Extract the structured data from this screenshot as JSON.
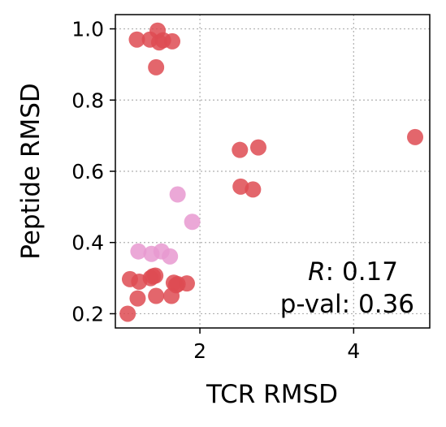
{
  "chart_data": {
    "type": "scatter",
    "xlabel": "TCR RMSD",
    "ylabel": "Peptide RMSD",
    "xlim": [
      0.9,
      4.99
    ],
    "ylim": [
      0.16,
      1.04
    ],
    "x_ticks": [
      2,
      4
    ],
    "y_ticks": [
      0.2,
      0.4,
      0.6,
      0.8,
      1.0
    ],
    "x_tick_labels": [
      "2",
      "4"
    ],
    "y_tick_labels": [
      "0.2",
      "0.4",
      "0.6",
      "0.8",
      "1.0"
    ],
    "grid": true,
    "annotation": {
      "r_symbol": "R",
      "r_value": ": 0.17",
      "pval_text": "p-val: 0.36"
    },
    "series": [
      {
        "color": "#de4b52",
        "points": [
          [
            1.35,
            0.97
          ],
          [
            1.45,
            0.995
          ],
          [
            1.52,
            0.968
          ],
          [
            1.64,
            0.965
          ],
          [
            1.18,
            0.97
          ],
          [
            1.47,
            0.962
          ],
          [
            1.43,
            0.892
          ],
          [
            2.52,
            0.66
          ],
          [
            2.76,
            0.667
          ],
          [
            4.8,
            0.696
          ],
          [
            2.53,
            0.557
          ],
          [
            2.69,
            0.549
          ],
          [
            1.09,
            0.297
          ],
          [
            1.21,
            0.29
          ],
          [
            1.36,
            0.3
          ],
          [
            1.39,
            0.305
          ],
          [
            1.42,
            0.307
          ],
          [
            1.66,
            0.287
          ],
          [
            1.69,
            0.28
          ],
          [
            1.71,
            0.283
          ],
          [
            1.83,
            0.285
          ],
          [
            1.19,
            0.243
          ],
          [
            1.43,
            0.25
          ],
          [
            1.63,
            0.25
          ],
          [
            1.06,
            0.2
          ]
        ]
      },
      {
        "color": "#e899d0",
        "points": [
          [
            1.71,
            0.535
          ],
          [
            1.9,
            0.458
          ],
          [
            1.2,
            0.375
          ],
          [
            1.37,
            0.368
          ],
          [
            1.5,
            0.375
          ],
          [
            1.61,
            0.361
          ]
        ]
      }
    ]
  }
}
